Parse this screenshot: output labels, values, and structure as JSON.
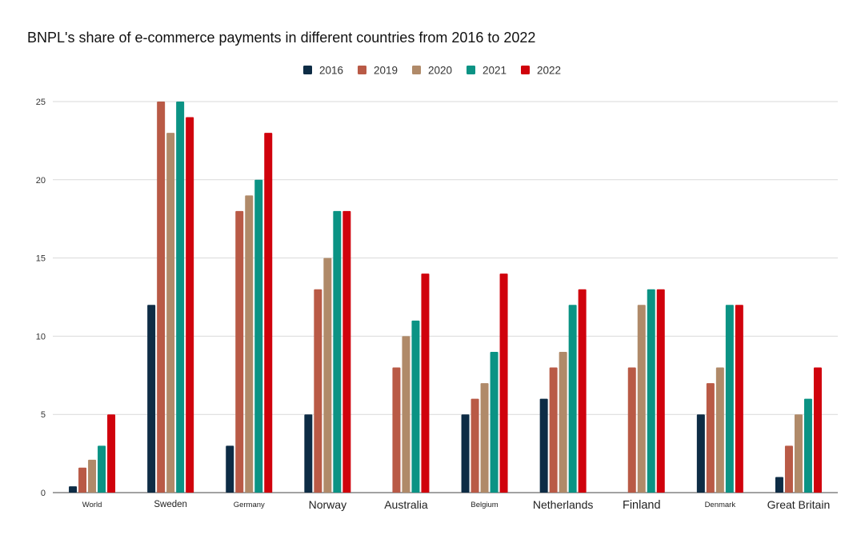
{
  "chart_data": {
    "type": "bar",
    "title": "BNPL's share of e-commerce payments in different countries from 2016 to 2022",
    "xlabel": "",
    "ylabel": "",
    "ylim": [
      0,
      25
    ],
    "yticks": [
      0,
      5,
      10,
      15,
      20,
      25
    ],
    "grid": true,
    "legend_position": "top-center",
    "categories": [
      "World",
      "Sweden",
      "Germany",
      "Norway",
      "Australia",
      "Belgium",
      "Netherlands",
      "Finland",
      "Denmark",
      "Great Britain"
    ],
    "series": [
      {
        "name": "2016",
        "color": "#0d2c45",
        "values": [
          0.4,
          12,
          3,
          5,
          null,
          5,
          6,
          null,
          5,
          1
        ]
      },
      {
        "name": "2019",
        "color": "#b95a46",
        "values": [
          1.6,
          25,
          18,
          13,
          8,
          6,
          8,
          8,
          7,
          3
        ]
      },
      {
        "name": "2020",
        "color": "#b08a69",
        "values": [
          2.1,
          23,
          19,
          15,
          10,
          7,
          9,
          12,
          8,
          5
        ]
      },
      {
        "name": "2021",
        "color": "#0b9384",
        "values": [
          3,
          25,
          20,
          18,
          11,
          9,
          12,
          13,
          12,
          6
        ]
      },
      {
        "name": "2022",
        "color": "#d0020c",
        "values": [
          5,
          24,
          23,
          18,
          14,
          14,
          13,
          13,
          12,
          8
        ]
      }
    ]
  }
}
